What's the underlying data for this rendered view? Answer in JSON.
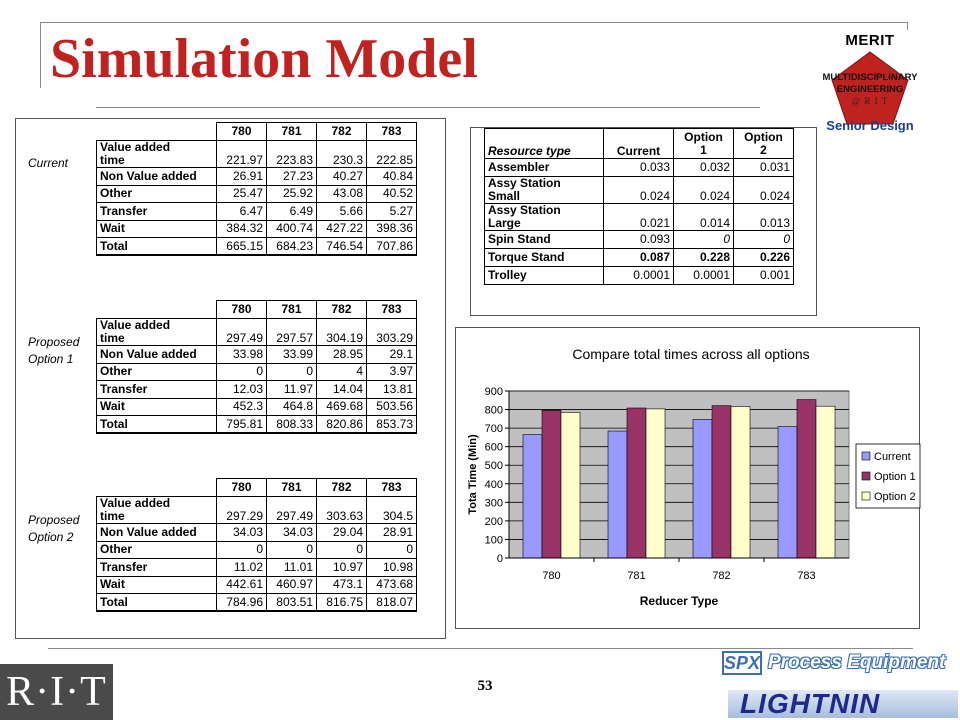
{
  "title": "Simulation Model",
  "page_number": "53",
  "logos": {
    "merit": {
      "word": "MERIT",
      "line1": "MULTIDISCIPLINARY",
      "line2": "ENGINEERING",
      "line3": "@ R I T",
      "tagline": "Senior Design"
    },
    "rit": "R·I·T",
    "spx": {
      "box": "SPX",
      "text": "Process Equipment"
    },
    "lightnin": "LIGHTNIN"
  },
  "tables": [
    {
      "label_line1": "Current",
      "label_line2": "",
      "columns": [
        "780",
        "781",
        "782",
        "783"
      ],
      "rows": [
        {
          "label_line1": "Value added",
          "label_line2": "time",
          "values": [
            "221.97",
            "223.83",
            "230.3",
            "222.85"
          ]
        },
        {
          "label": "Non Value added",
          "values": [
            "26.91",
            "27.23",
            "40.27",
            "40.84"
          ]
        },
        {
          "label": "Other",
          "values": [
            "25.47",
            "25.92",
            "43.08",
            "40.52"
          ]
        },
        {
          "label": "Transfer",
          "values": [
            "6.47",
            "6.49",
            "5.66",
            "5.27"
          ]
        },
        {
          "label": "Wait",
          "values": [
            "384.32",
            "400.74",
            "427.22",
            "398.36"
          ]
        }
      ],
      "total": {
        "label": "Total",
        "values": [
          "665.15",
          "684.23",
          "746.54",
          "707.86"
        ]
      }
    },
    {
      "label_line1": "Proposed",
      "label_line2": "Option 1",
      "columns": [
        "780",
        "781",
        "782",
        "783"
      ],
      "rows": [
        {
          "label_line1": "Value added",
          "label_line2": "time",
          "values": [
            "297.49",
            "297.57",
            "304.19",
            "303.29"
          ]
        },
        {
          "label": "Non Value added",
          "values": [
            "33.98",
            "33.99",
            "28.95",
            "29.1"
          ]
        },
        {
          "label": "Other",
          "values": [
            "0",
            "0",
            "4",
            "3.97"
          ]
        },
        {
          "label": "Transfer",
          "values": [
            "12.03",
            "11.97",
            "14.04",
            "13.81"
          ]
        },
        {
          "label": "Wait",
          "values": [
            "452.3",
            "464.8",
            "469.68",
            "503.56"
          ]
        }
      ],
      "total": {
        "label": "Total",
        "values": [
          "795.81",
          "808.33",
          "820.86",
          "853.73"
        ]
      }
    },
    {
      "label_line1": "Proposed",
      "label_line2": "Option 2",
      "columns": [
        "780",
        "781",
        "782",
        "783"
      ],
      "rows": [
        {
          "label_line1": "Value added",
          "label_line2": "time",
          "values": [
            "297.29",
            "297.49",
            "303.63",
            "304.5"
          ]
        },
        {
          "label": "Non Value added",
          "values": [
            "34.03",
            "34.03",
            "29.04",
            "28.91"
          ]
        },
        {
          "label": "Other",
          "values": [
            "0",
            "0",
            "0",
            "0"
          ]
        },
        {
          "label": "Transfer",
          "values": [
            "11.02",
            "11.01",
            "10.97",
            "10.98"
          ]
        },
        {
          "label": "Wait",
          "values": [
            "442.61",
            "460.97",
            "473.1",
            "473.68"
          ]
        }
      ],
      "total": {
        "label": "Total",
        "values": [
          "784.96",
          "803.51",
          "816.75",
          "818.07"
        ]
      }
    }
  ],
  "resource_table": {
    "header": {
      "label": "Resource type",
      "current": "Current",
      "opt1_line1": "Option",
      "opt1_line2": "1",
      "opt2_line1": "Option",
      "opt2_line2": "2"
    },
    "rows": [
      {
        "label_line1": "Assembler",
        "label_line2": "",
        "values": [
          "0.033",
          "0.032",
          "0.031"
        ],
        "bold": false,
        "italic": [
          false,
          false,
          false
        ]
      },
      {
        "label_line1": "Assy Station",
        "label_line2": "Small",
        "values": [
          "0.024",
          "0.024",
          "0.024"
        ],
        "bold": false,
        "italic": [
          false,
          false,
          false
        ]
      },
      {
        "label_line1": "Assy Station",
        "label_line2": "Large",
        "values": [
          "0.021",
          "0.014",
          "0.013"
        ],
        "bold": false,
        "italic": [
          false,
          false,
          false
        ]
      },
      {
        "label_line1": "Spin Stand",
        "label_line2": "",
        "values": [
          "0.093",
          "0",
          "0"
        ],
        "bold": false,
        "italic": [
          false,
          true,
          true
        ]
      },
      {
        "label_line1": "Torque Stand",
        "label_line2": "",
        "values": [
          "0.087",
          "0.228",
          "0.226"
        ],
        "bold": true,
        "italic": [
          false,
          false,
          false
        ]
      },
      {
        "label_line1": "Trolley",
        "label_line2": "",
        "values": [
          "0.0001",
          "0.0001",
          "0.001"
        ],
        "bold": false,
        "italic": [
          false,
          false,
          false
        ]
      }
    ]
  },
  "chart_data": {
    "type": "bar",
    "title": "Compare total times across all options",
    "xlabel": "Reducer Type",
    "ylabel": "Tota Time (Min)",
    "categories": [
      "780",
      "781",
      "782",
      "783"
    ],
    "series": [
      {
        "name": "Current",
        "values": [
          665.15,
          684.23,
          746.54,
          707.86
        ],
        "color": "#9999ff"
      },
      {
        "name": "Option 1",
        "values": [
          795.81,
          808.33,
          820.86,
          853.73
        ],
        "color": "#993366"
      },
      {
        "name": "Option 2",
        "values": [
          784.96,
          803.51,
          816.75,
          818.07
        ],
        "color": "#ffffcc"
      }
    ],
    "ylim": [
      0,
      900
    ],
    "yticks": [
      "0",
      "100",
      "200",
      "300",
      "400",
      "500",
      "600",
      "700",
      "800",
      "900"
    ],
    "background": "#c0c0c0",
    "grid": true,
    "legend_position": "right"
  }
}
